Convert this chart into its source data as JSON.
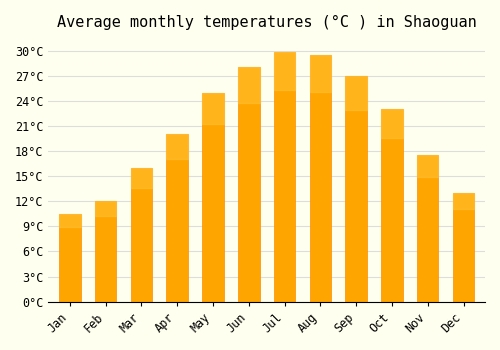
{
  "months": [
    "Jan",
    "Feb",
    "Mar",
    "Apr",
    "May",
    "Jun",
    "Jul",
    "Aug",
    "Sep",
    "Oct",
    "Nov",
    "Dec"
  ],
  "temperatures": [
    10.5,
    12.0,
    16.0,
    20.0,
    25.0,
    28.0,
    29.8,
    29.5,
    27.0,
    23.0,
    17.5,
    13.0
  ],
  "bar_color": "#FFA500",
  "bar_edge_color": "#FF8C00",
  "background_color": "#FFFFF0",
  "grid_color": "#DDDDDD",
  "title": "Average monthly temperatures (°C ) in Shaoguan",
  "ylabel_ticks": [
    0,
    3,
    6,
    9,
    12,
    15,
    18,
    21,
    24,
    27,
    30
  ],
  "ylim": [
    0,
    31.5
  ],
  "title_fontsize": 11,
  "tick_fontsize": 8.5,
  "font_family": "monospace"
}
